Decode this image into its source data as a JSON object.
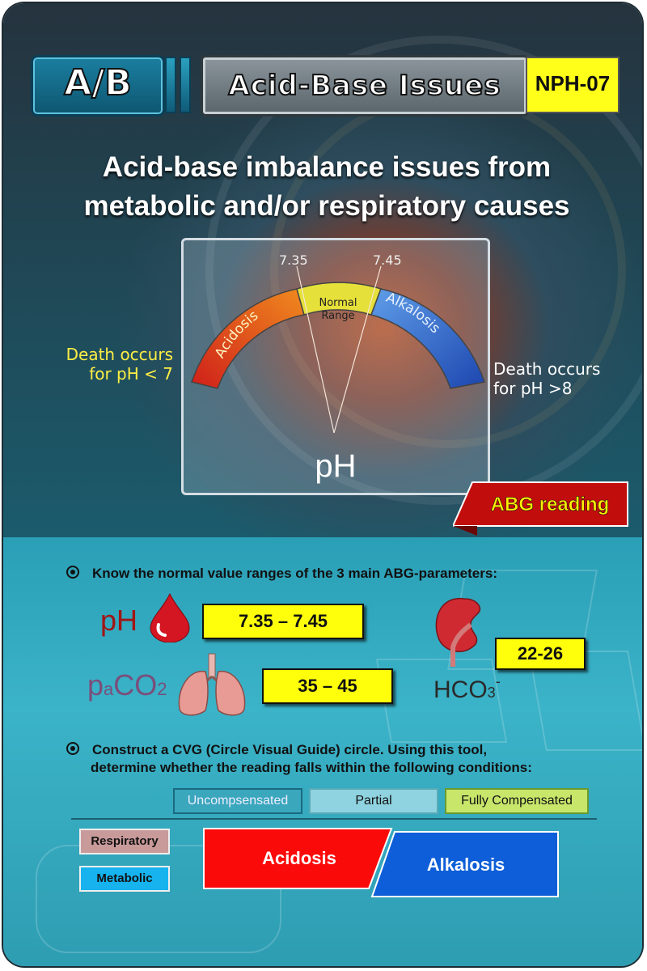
{
  "header": {
    "badge": "A/B",
    "title": "Acid-Base Issues",
    "code": "NPH-07"
  },
  "headline": {
    "line1": "Acid-base imbalance issues from",
    "line2": "metabolic and/or respiratory causes"
  },
  "gauge": {
    "low_tick": "7.35",
    "high_tick": "7.45",
    "left_label": "Acidosis",
    "center_label_1": "Normal",
    "center_label_2": "Range",
    "right_label": "Alkalosis",
    "axis_label": "pH",
    "death_low_1": "Death occurs",
    "death_low_2": "for pH < 7",
    "death_high_1": "Death occurs",
    "death_high_2": "for pH >8",
    "colors": {
      "acidosis": "#e3261c",
      "normal": "#e8e23a",
      "alkalosis": "#2f5fc8"
    }
  },
  "ribbon": {
    "label": "ABG reading"
  },
  "section1": {
    "bullet": "Know the normal value ranges of the 3 main ABG-parameters:",
    "ph_label": "pH",
    "ph_range": "7.35 – 7.45",
    "paco2_p": "p",
    "paco2_a": "a",
    "paco2_co": "CO",
    "paco2_2": "2",
    "paco2_range": "35 – 45",
    "hco3_hco": "HCO",
    "hco3_3": "3",
    "hco3_minus": "-",
    "hco3_range": "22-26",
    "icons": [
      "blood-drop-icon",
      "lungs-icon",
      "kidney-icon"
    ]
  },
  "section2": {
    "bullet_line1": "Construct a CVG (Circle Visual Guide) circle. Using this tool,",
    "bullet_line2": "determine whether the reading falls within the following conditions:",
    "legend": [
      "Uncompsensated",
      "Partial",
      "Fully Compensated"
    ],
    "cause_labels": [
      "Respiratory",
      "Metabolic"
    ],
    "acidosis_label": "Acidosis",
    "alkalosis_label": "Alkalosis"
  }
}
